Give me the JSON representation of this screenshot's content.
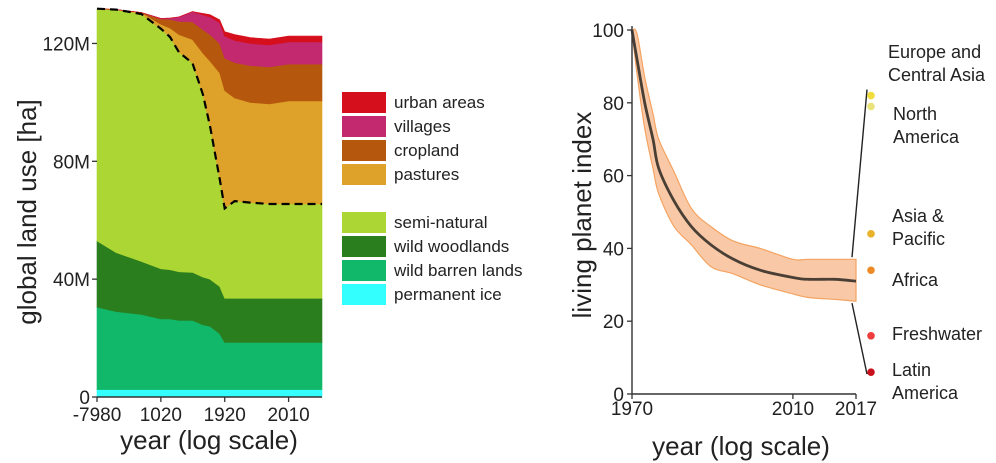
{
  "chart_data": [
    {
      "type": "area",
      "stacked": true,
      "xlabel": "year (log scale)",
      "ylabel": "global land use [ha]",
      "xscale": "log (years before 2020)",
      "x_ticks": [
        "-7980",
        "1020",
        "1920",
        "2010"
      ],
      "y_ticks": [
        "0",
        "40M",
        "80M",
        "120M"
      ],
      "ylim": [
        0,
        130000000
      ],
      "grid": false,
      "legend_position": "right",
      "x": [
        -7980,
        -3000,
        0,
        1020,
        1300,
        1500,
        1700,
        1800,
        1850,
        1900,
        1920,
        1950,
        1980,
        2000,
        2010,
        2017
      ],
      "series": [
        {
          "name": "permanent ice",
          "color": "#33ffff",
          "values": [
            2500000.0,
            2500000.0,
            2500000.0,
            2500000.0,
            2500000.0,
            2500000.0,
            2500000.0,
            2500000.0,
            2500000.0,
            2500000.0,
            2500000.0,
            2500000.0,
            2500000.0,
            2500000.0,
            2500000.0,
            2500000.0
          ]
        },
        {
          "name": "wild barren lands",
          "color": "#12b86a",
          "values": [
            28000000.0,
            26500000.0,
            25500000.0,
            24000000.0,
            24000000.0,
            23500000.0,
            23500000.0,
            22000000.0,
            21500000.0,
            19000000.0,
            16000000.0,
            16000000.0,
            16000000.0,
            16000000.0,
            16000000.0,
            16000000.0
          ]
        },
        {
          "name": "wild woodlands",
          "color": "#2a7e1e",
          "values": [
            22500000.0,
            20000000.0,
            18000000.0,
            17000000.0,
            16700000.0,
            16500000.0,
            16300000.0,
            16200000.0,
            16000000.0,
            16000000.0,
            15000000.0,
            15000000.0,
            15000000.0,
            15000000.0,
            15000000.0,
            15000000.0
          ]
        },
        {
          "name": "semi-natural",
          "color": "#acd633",
          "values": [
            78800000.0,
            82500000.0,
            84000000.0,
            81500000.0,
            79000000.0,
            74500000.0,
            71000000.0,
            62000000.0,
            52000000.0,
            36500000.0,
            30500000.0,
            33000000.0,
            32500000.0,
            32000000.0,
            32000000.0,
            32000000.0
          ]
        },
        {
          "name": "pastures",
          "color": "#dea12a",
          "values": [
            0,
            0,
            500000.0,
            1500000.0,
            3000000.0,
            6000000.0,
            8000000.0,
            14000000.0,
            22000000.0,
            36000000.0,
            40000000.0,
            35000000.0,
            34000000.0,
            34000000.0,
            35000000.0,
            35000000.0
          ]
        },
        {
          "name": "cropland",
          "color": "#b5580d",
          "values": [
            0,
            0,
            0,
            1800000.0,
            3000000.0,
            4500000.0,
            6000000.0,
            8000000.0,
            9000000.0,
            10000000.0,
            11000000.0,
            12000000.0,
            12500000.0,
            12500000.0,
            12500000.0,
            12500000.0
          ]
        },
        {
          "name": "villages",
          "color": "#c2296e",
          "values": [
            0,
            0,
            0,
            200000.0,
            400000.0,
            1500000.0,
            3500000.0,
            5000000.0,
            6000000.0,
            7000000.0,
            7500000.0,
            7500000.0,
            7500000.0,
            7500000.0,
            7500000.0,
            7500000.0
          ]
        },
        {
          "name": "urban areas",
          "color": "#d60f1d",
          "values": [
            0,
            0,
            0,
            0,
            0,
            0,
            0,
            500000.0,
            800000.0,
            1000000.0,
            1500000.0,
            2000000.0,
            2000000.0,
            2000000.0,
            2000000.0,
            2000000.0
          ]
        }
      ],
      "legend_groups": [
        [
          "urban areas",
          "villages",
          "cropland",
          "pastures"
        ],
        [
          "semi-natural",
          "wild woodlands",
          "wild barren lands",
          "permanent ice"
        ]
      ],
      "annotations": [
        "dashed line marks the upper boundary of semi-natural land"
      ]
    },
    {
      "type": "line",
      "xlabel": "year (log scale)",
      "ylabel": "living planet index",
      "x_ticks": [
        "1970",
        "2010",
        "2017"
      ],
      "y_ticks": [
        "0",
        "20",
        "40",
        "60",
        "80",
        "100"
      ],
      "ylim": [
        0,
        100
      ],
      "grid": false,
      "x": [
        1970,
        1972,
        1975,
        1978,
        1980,
        1985,
        1990,
        1995,
        2000,
        2005,
        2010,
        2012,
        2015,
        2017
      ],
      "values": [
        100,
        92,
        80,
        70,
        62,
        53,
        46,
        41,
        37,
        34,
        32,
        31.5,
        31.5,
        31
      ],
      "band_upper": [
        100,
        99,
        87,
        77,
        70,
        61,
        51,
        46,
        42,
        40,
        37,
        37,
        37,
        37
      ],
      "band_lower": [
        100,
        88,
        73,
        62,
        55,
        46,
        41,
        35,
        33,
        30,
        27.5,
        26.5,
        26,
        25.5
      ],
      "line_color": "#4a3f35",
      "band_color": "#f9c9a7",
      "band_edge_color": "#f4a361",
      "regions": [
        {
          "name": "Europe and Central Asia",
          "value": 82,
          "color": "#f1dd3c"
        },
        {
          "name": "North America",
          "value": 79,
          "color": "#eae37a"
        },
        {
          "name": "Asia & Pacific",
          "value": 44,
          "color": "#e8b22a"
        },
        {
          "name": "Africa",
          "value": 34,
          "color": "#ec8a25"
        },
        {
          "name": "Freshwater",
          "value": 16,
          "color": "#ee3c3c"
        },
        {
          "name": "Latin America",
          "value": 6,
          "color": "#c8111c"
        }
      ]
    }
  ]
}
